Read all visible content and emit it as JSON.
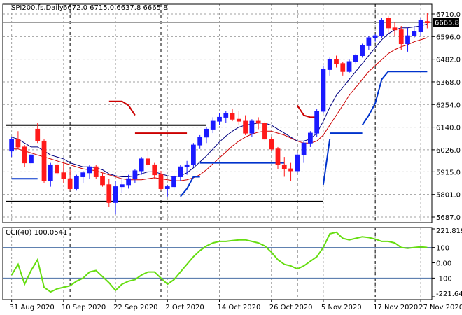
{
  "chart_data": [
    {
      "type": "candlestick",
      "title": "SPI200.fs,Daily",
      "ohlc_header": "6672.0 6715.0 6637.8 6665.8",
      "current_price_label": "6665.8",
      "current_price": 6665.8,
      "ylim": [
        5687.0,
        6710.0
      ],
      "y_ticks": [
        "6710.0",
        "6596.0",
        "6482.0",
        "6368.0",
        "6254.0",
        "6140.0",
        "6026.0",
        "5915.0",
        "5801.0",
        "5687.0"
      ],
      "x_ticks": [
        "31 Aug 2020",
        "10 Sep 2020",
        "22 Sep 2020",
        "2 Oct 2020",
        "14 Oct 2020",
        "26 Oct 2020",
        "5 Nov 2020",
        "17 Nov 2020",
        "27 Nov 2020"
      ],
      "colors": {
        "bull": "#1a1aff",
        "bear": "#ff1a1a",
        "ma_fast": "#000080",
        "ma_slow": "#cc0000",
        "support_line": "#0033cc",
        "resistance_line": "#cc0000",
        "levels": "#000000"
      },
      "candles": [
        [
          6020,
          6090,
          5990,
          6080
        ],
        [
          6080,
          6120,
          6030,
          6040
        ],
        [
          6040,
          6050,
          5940,
          5960
        ],
        [
          5960,
          6010,
          5940,
          6000
        ],
        [
          6130,
          6160,
          6060,
          6070
        ],
        [
          6070,
          6080,
          5860,
          5870
        ],
        [
          5870,
          5960,
          5840,
          5950
        ],
        [
          5950,
          5990,
          5900,
          5910
        ],
        [
          5910,
          5960,
          5860,
          5880
        ],
        [
          5880,
          5930,
          5820,
          5830
        ],
        [
          5830,
          5900,
          5820,
          5890
        ],
        [
          5890,
          5920,
          5860,
          5910
        ],
        [
          5910,
          5950,
          5880,
          5940
        ],
        [
          5940,
          5950,
          5880,
          5890
        ],
        [
          5890,
          5910,
          5840,
          5850
        ],
        [
          5850,
          5880,
          5740,
          5760
        ],
        [
          5760,
          5870,
          5700,
          5840
        ],
        [
          5840,
          5880,
          5810,
          5850
        ],
        [
          5850,
          5900,
          5830,
          5880
        ],
        [
          5880,
          5930,
          5860,
          5920
        ],
        [
          5920,
          5990,
          5900,
          5980
        ],
        [
          5980,
          6020,
          5940,
          5950
        ],
        [
          5950,
          5960,
          5880,
          5900
        ],
        [
          5900,
          5920,
          5820,
          5830
        ],
        [
          5830,
          5850,
          5790,
          5840
        ],
        [
          5840,
          5900,
          5820,
          5890
        ],
        [
          5890,
          5950,
          5870,
          5940
        ],
        [
          5940,
          5970,
          5900,
          5950
        ],
        [
          5950,
          6060,
          5940,
          6050
        ],
        [
          6050,
          6100,
          6030,
          6090
        ],
        [
          6090,
          6140,
          6060,
          6130
        ],
        [
          6130,
          6190,
          6110,
          6170
        ],
        [
          6170,
          6210,
          6150,
          6190
        ],
        [
          6190,
          6220,
          6160,
          6210
        ],
        [
          6210,
          6230,
          6170,
          6180
        ],
        [
          6180,
          6220,
          6150,
          6170
        ],
        [
          6170,
          6200,
          6100,
          6110
        ],
        [
          6110,
          6180,
          6090,
          6170
        ],
        [
          6170,
          6190,
          6130,
          6160
        ],
        [
          6160,
          6170,
          6070,
          6080
        ],
        [
          6080,
          6090,
          6020,
          6030
        ],
        [
          6030,
          6040,
          5930,
          5950
        ],
        [
          5950,
          5990,
          5890,
          5930
        ],
        [
          5930,
          5960,
          5870,
          5920
        ],
        [
          5920,
          6010,
          5910,
          6000
        ],
        [
          6000,
          6070,
          5960,
          6060
        ],
        [
          6060,
          6120,
          6040,
          6110
        ],
        [
          6110,
          6230,
          6090,
          6220
        ],
        [
          6220,
          6450,
          6210,
          6430
        ],
        [
          6430,
          6490,
          6400,
          6480
        ],
        [
          6480,
          6500,
          6440,
          6460
        ],
        [
          6460,
          6470,
          6400,
          6420
        ],
        [
          6420,
          6480,
          6410,
          6470
        ],
        [
          6470,
          6510,
          6460,
          6500
        ],
        [
          6500,
          6560,
          6490,
          6550
        ],
        [
          6550,
          6600,
          6530,
          6590
        ],
        [
          6590,
          6610,
          6570,
          6600
        ],
        [
          6600,
          6690,
          6590,
          6680
        ],
        [
          6690,
          6700,
          6610,
          6640
        ],
        [
          6640,
          6670,
          6600,
          6630
        ],
        [
          6630,
          6650,
          6530,
          6560
        ],
        [
          6560,
          6640,
          6520,
          6600
        ],
        [
          6600,
          6650,
          6590,
          6620
        ],
        [
          6620,
          6690,
          6600,
          6680
        ],
        [
          6672.0,
          6715.0,
          6637.8,
          6665.8
        ]
      ],
      "ma_fast": [
        6090,
        6080,
        6060,
        6040,
        6040,
        6020,
        6000,
        5990,
        5980,
        5960,
        5950,
        5940,
        5940,
        5935,
        5925,
        5905,
        5895,
        5890,
        5890,
        5895,
        5905,
        5915,
        5915,
        5905,
        5895,
        5890,
        5895,
        5910,
        5935,
        5965,
        5995,
        6030,
        6065,
        6095,
        6120,
        6140,
        6150,
        6155,
        6160,
        6160,
        6150,
        6130,
        6110,
        6090,
        6070,
        6070,
        6080,
        6110,
        6170,
        6240,
        6300,
        6340,
        6380,
        6420,
        6460,
        6500,
        6540,
        6580,
        6610,
        6630,
        6640,
        6640,
        6645,
        6650,
        6660
      ],
      "ma_slow": [
        6030,
        6030,
        6020,
        6010,
        6000,
        5990,
        5980,
        5970,
        5960,
        5950,
        5940,
        5930,
        5925,
        5920,
        5910,
        5900,
        5890,
        5880,
        5875,
        5875,
        5875,
        5880,
        5885,
        5880,
        5875,
        5870,
        5870,
        5875,
        5885,
        5900,
        5925,
        5955,
        5985,
        6015,
        6045,
        6070,
        6090,
        6105,
        6115,
        6120,
        6120,
        6110,
        6100,
        6085,
        6070,
        6060,
        6060,
        6070,
        6100,
        6150,
        6200,
        6250,
        6300,
        6340,
        6380,
        6420,
        6450,
        6480,
        6510,
        6530,
        6545,
        6555,
        6570,
        6580,
        6590
      ],
      "stop_down_segments": [
        {
          "from": 15,
          "to": 19,
          "values": [
            6270,
            6270,
            6270,
            6250,
            6200
          ]
        },
        {
          "from": 19,
          "to": 27,
          "values": [
            6110,
            6110,
            6110,
            6110,
            6110,
            6110,
            6110,
            6110,
            6110
          ]
        },
        {
          "from": 44,
          "to": 47,
          "values": [
            6250,
            6200,
            6190,
            6190
          ]
        }
      ],
      "stop_up_segments": [
        {
          "from": 0,
          "to": 4,
          "values": [
            5880,
            5880,
            5880,
            5880,
            5880
          ]
        },
        {
          "from": 26,
          "to": 29,
          "values": [
            5790,
            5830,
            5890,
            5890
          ]
        },
        {
          "from": 29,
          "to": 42,
          "values": [
            5960,
            5960,
            5960,
            5960,
            5960,
            5960,
            5960,
            5960,
            5960,
            5960,
            5960,
            5960,
            5960,
            5960
          ]
        },
        {
          "from": 48,
          "to": 49,
          "values": [
            5850,
            6080
          ]
        },
        {
          "from": 49,
          "to": 54,
          "values": [
            6110,
            6110,
            6110,
            6110,
            6110,
            6110
          ]
        },
        {
          "from": 54,
          "to": 64,
          "values": [
            6150,
            6200,
            6260,
            6380,
            6420,
            6420,
            6420,
            6420,
            6420,
            6420,
            6420
          ]
        }
      ],
      "horizontal_levels": [
        {
          "value": 6150,
          "from": 0,
          "to": 30
        },
        {
          "value": 5765,
          "from": 0,
          "to": 48
        },
        {
          "value": 6665.8,
          "from": 0,
          "to": 64
        }
      ],
      "vertical_markers": [
        9,
        23,
        44,
        56
      ]
    },
    {
      "type": "line",
      "title": "CCI(40) 100.0541",
      "ylim": [
        -221.64,
        221.8193
      ],
      "y_ticks": [
        "221.8193",
        "100",
        "0.00",
        "-100",
        "-221.640"
      ],
      "levels": [
        100,
        -100
      ],
      "series": [
        {
          "name": "CCI(40)",
          "values": [
            -80,
            -10,
            -140,
            -50,
            20,
            -160,
            -190,
            -170,
            -160,
            -150,
            -120,
            -100,
            -60,
            -50,
            -90,
            -130,
            -180,
            -140,
            -120,
            -110,
            -80,
            -60,
            -60,
            -100,
            -140,
            -110,
            -60,
            -10,
            40,
            80,
            110,
            130,
            140,
            140,
            145,
            150,
            150,
            140,
            130,
            110,
            70,
            20,
            -10,
            -20,
            -40,
            -20,
            10,
            40,
            100,
            190,
            200,
            160,
            150,
            160,
            170,
            165,
            155,
            140,
            140,
            130,
            100,
            95,
            100,
            105,
            100
          ]
        }
      ]
    }
  ]
}
